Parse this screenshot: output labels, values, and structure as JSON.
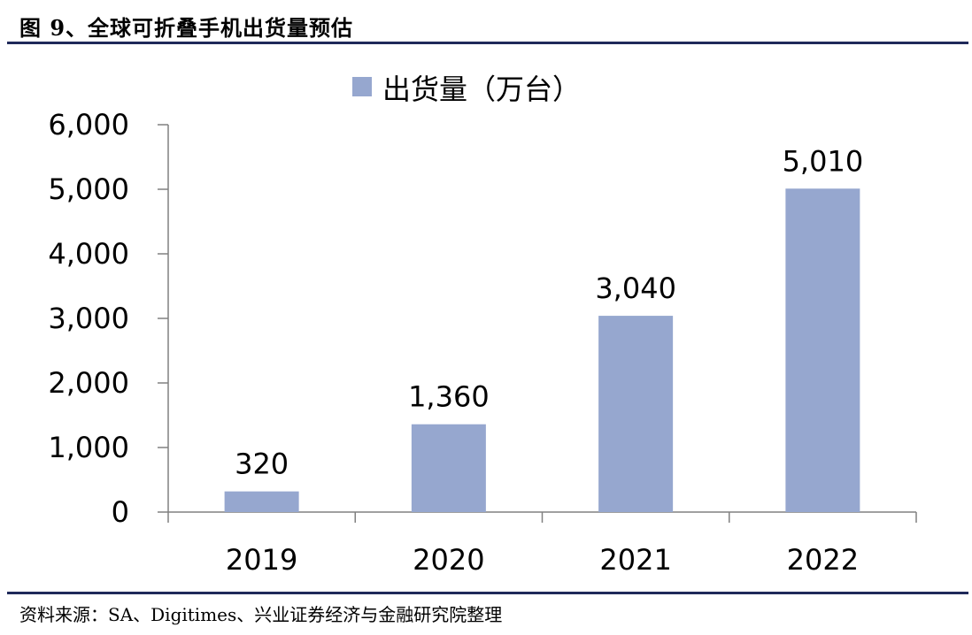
{
  "figure_title": "图 9、全球可折叠手机出货量预估",
  "source": "资料来源：SA、Digitimes、兴业证券经济与金融研究院整理",
  "chart_data": {
    "type": "bar",
    "categories": [
      "2019",
      "2020",
      "2021",
      "2022"
    ],
    "series": [
      {
        "name": "出货量（万台）",
        "values": [
          320,
          1360,
          3040,
          5010
        ],
        "color": "#96a7cf"
      }
    ],
    "data_labels": [
      "320",
      "1,360",
      "3,040",
      "5,010"
    ],
    "y_ticks": [
      "0",
      "1,000",
      "2,000",
      "3,000",
      "4,000",
      "5,000",
      "6,000"
    ],
    "ylim": [
      0,
      6000
    ],
    "legend_position": "top-center",
    "grid": false
  }
}
